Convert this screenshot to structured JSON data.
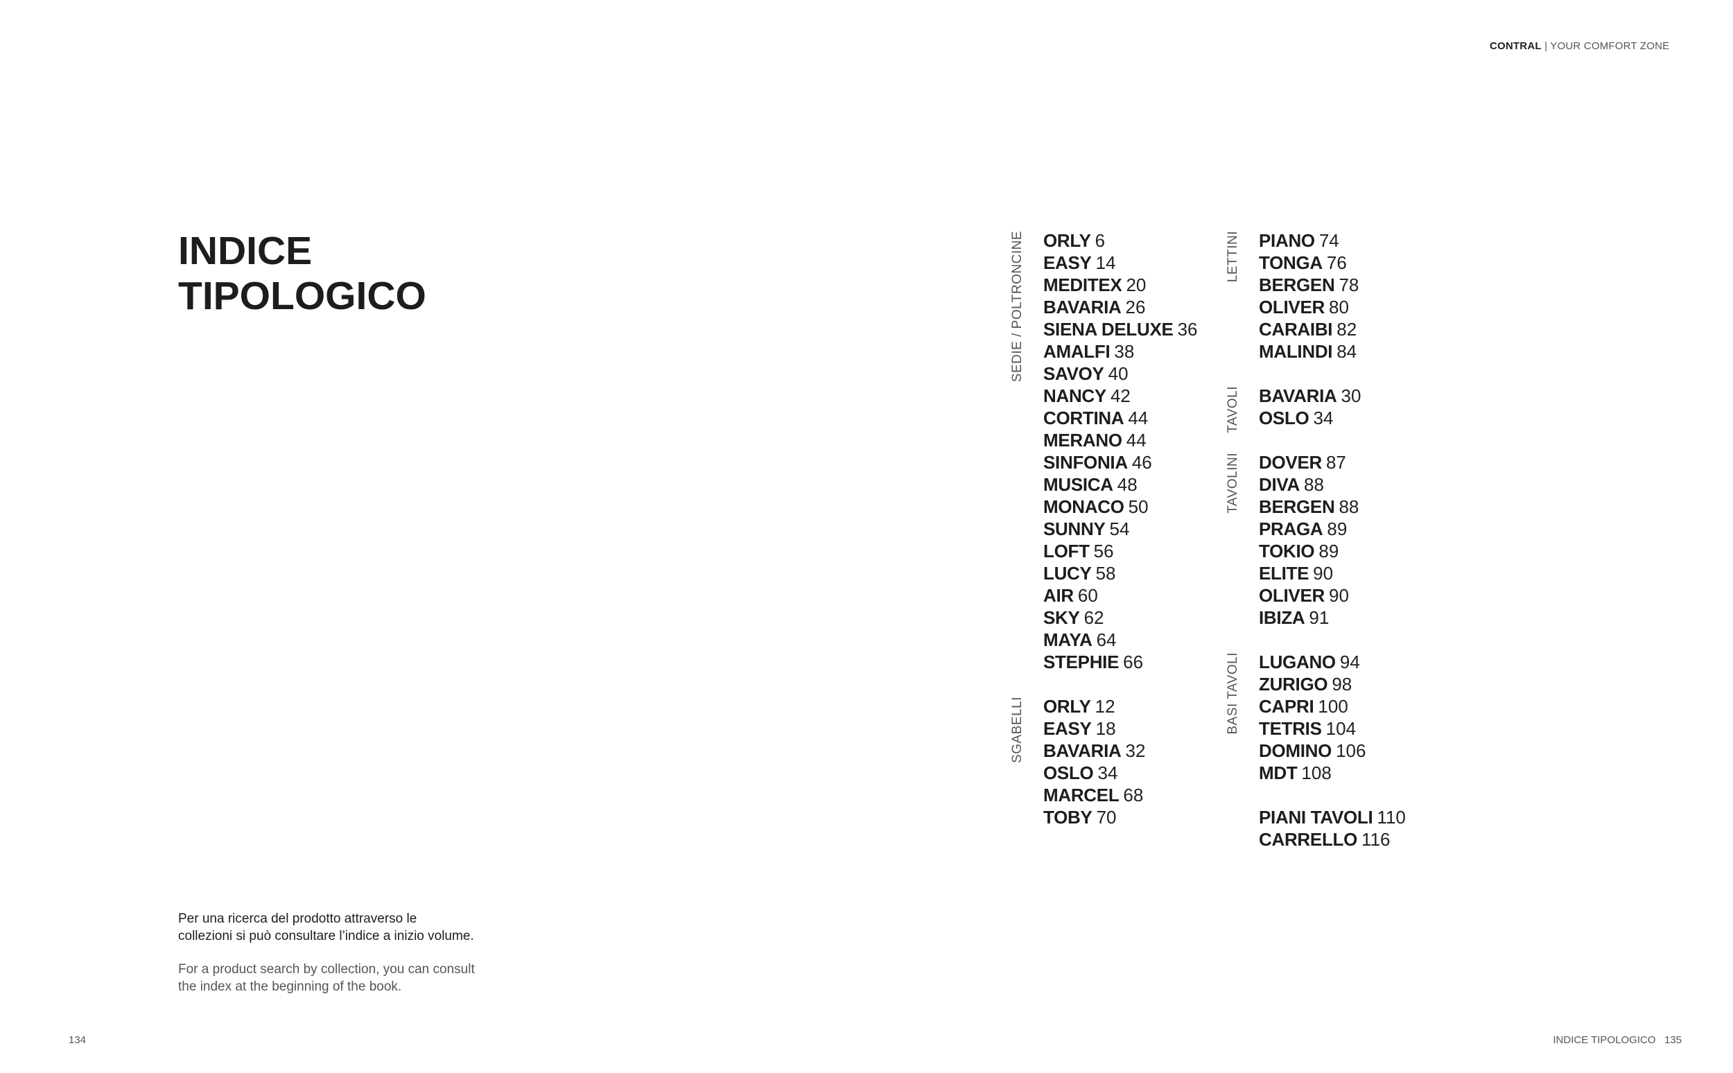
{
  "header": {
    "brand": "CONTRAL",
    "tagline": "| YOUR COMFORT ZONE"
  },
  "title": {
    "line1": "INDICE",
    "line2": "TIPOLOGICO"
  },
  "note": {
    "it_line1": "Per una ricerca del prodotto attraverso le",
    "it_line2": "collezioni si può consultare l’indice a inizio volume.",
    "en_line1": "For a product search by collection, you can consult",
    "en_line2": "the index at the beginning of the book."
  },
  "columns": [
    [
      {
        "label": "SEDIE / POLTRONCINE",
        "items": [
          {
            "name": "ORLY",
            "page": "6"
          },
          {
            "name": "EASY",
            "page": "14"
          },
          {
            "name": "MEDITEX",
            "page": "20"
          },
          {
            "name": "BAVARIA",
            "page": "26"
          },
          {
            "name": "SIENA DELUXE",
            "page": "36"
          },
          {
            "name": "AMALFI",
            "page": "38"
          },
          {
            "name": "SAVOY",
            "page": "40"
          },
          {
            "name": "NANCY",
            "page": "42"
          },
          {
            "name": "CORTINA",
            "page": "44"
          },
          {
            "name": "MERANO",
            "page": "44"
          },
          {
            "name": "SINFONIA",
            "page": "46"
          },
          {
            "name": "MUSICA",
            "page": "48"
          },
          {
            "name": "MONACO",
            "page": "50"
          },
          {
            "name": "SUNNY",
            "page": "54"
          },
          {
            "name": "LOFT",
            "page": "56"
          },
          {
            "name": "LUCY",
            "page": "58"
          },
          {
            "name": "AIR",
            "page": "60"
          },
          {
            "name": "SKY",
            "page": "62"
          },
          {
            "name": "MAYA",
            "page": "64"
          },
          {
            "name": "STEPHIE",
            "page": "66"
          }
        ]
      },
      {
        "label": "SGABELLI",
        "items": [
          {
            "name": "ORLY",
            "page": "12"
          },
          {
            "name": "EASY",
            "page": "18"
          },
          {
            "name": "BAVARIA",
            "page": "32"
          },
          {
            "name": "OSLO",
            "page": "34"
          },
          {
            "name": "MARCEL",
            "page": "68"
          },
          {
            "name": "TOBY",
            "page": "70"
          }
        ]
      }
    ],
    [
      {
        "label": "LETTINI",
        "items": [
          {
            "name": "PIANO",
            "page": "74"
          },
          {
            "name": "TONGA",
            "page": "76"
          },
          {
            "name": "BERGEN",
            "page": "78"
          },
          {
            "name": "OLIVER",
            "page": "80"
          },
          {
            "name": "CARAIBI",
            "page": "82"
          },
          {
            "name": "MALINDI",
            "page": "84"
          }
        ]
      },
      {
        "label": "TAVOLI",
        "items": [
          {
            "name": "BAVARIA",
            "page": "30"
          },
          {
            "name": "OSLO",
            "page": "34"
          }
        ]
      },
      {
        "label": "TAVOLINI",
        "items": [
          {
            "name": "DOVER",
            "page": "87"
          },
          {
            "name": "DIVA",
            "page": "88"
          },
          {
            "name": "BERGEN",
            "page": "88"
          },
          {
            "name": "PRAGA",
            "page": "89"
          },
          {
            "name": "TOKIO",
            "page": "89"
          },
          {
            "name": "ELITE",
            "page": "90"
          },
          {
            "name": "OLIVER",
            "page": "90"
          },
          {
            "name": "IBIZA",
            "page": "91"
          }
        ]
      },
      {
        "label": "BASI TAVOLI",
        "items": [
          {
            "name": "LUGANO",
            "page": "94"
          },
          {
            "name": "ZURIGO",
            "page": "98"
          },
          {
            "name": "CAPRI",
            "page": "100"
          },
          {
            "name": "TETRIS",
            "page": "104"
          },
          {
            "name": "DOMINO",
            "page": "106"
          },
          {
            "name": "MDT",
            "page": "108"
          }
        ]
      },
      {
        "label": "",
        "items": [
          {
            "name": "PIANI TAVOLI",
            "page": "110"
          },
          {
            "name": "CARRELLO",
            "page": "116"
          }
        ]
      }
    ]
  ],
  "footer": {
    "left_page": "134",
    "right_section": "INDICE TIPOLOGICO",
    "right_page": "135"
  }
}
